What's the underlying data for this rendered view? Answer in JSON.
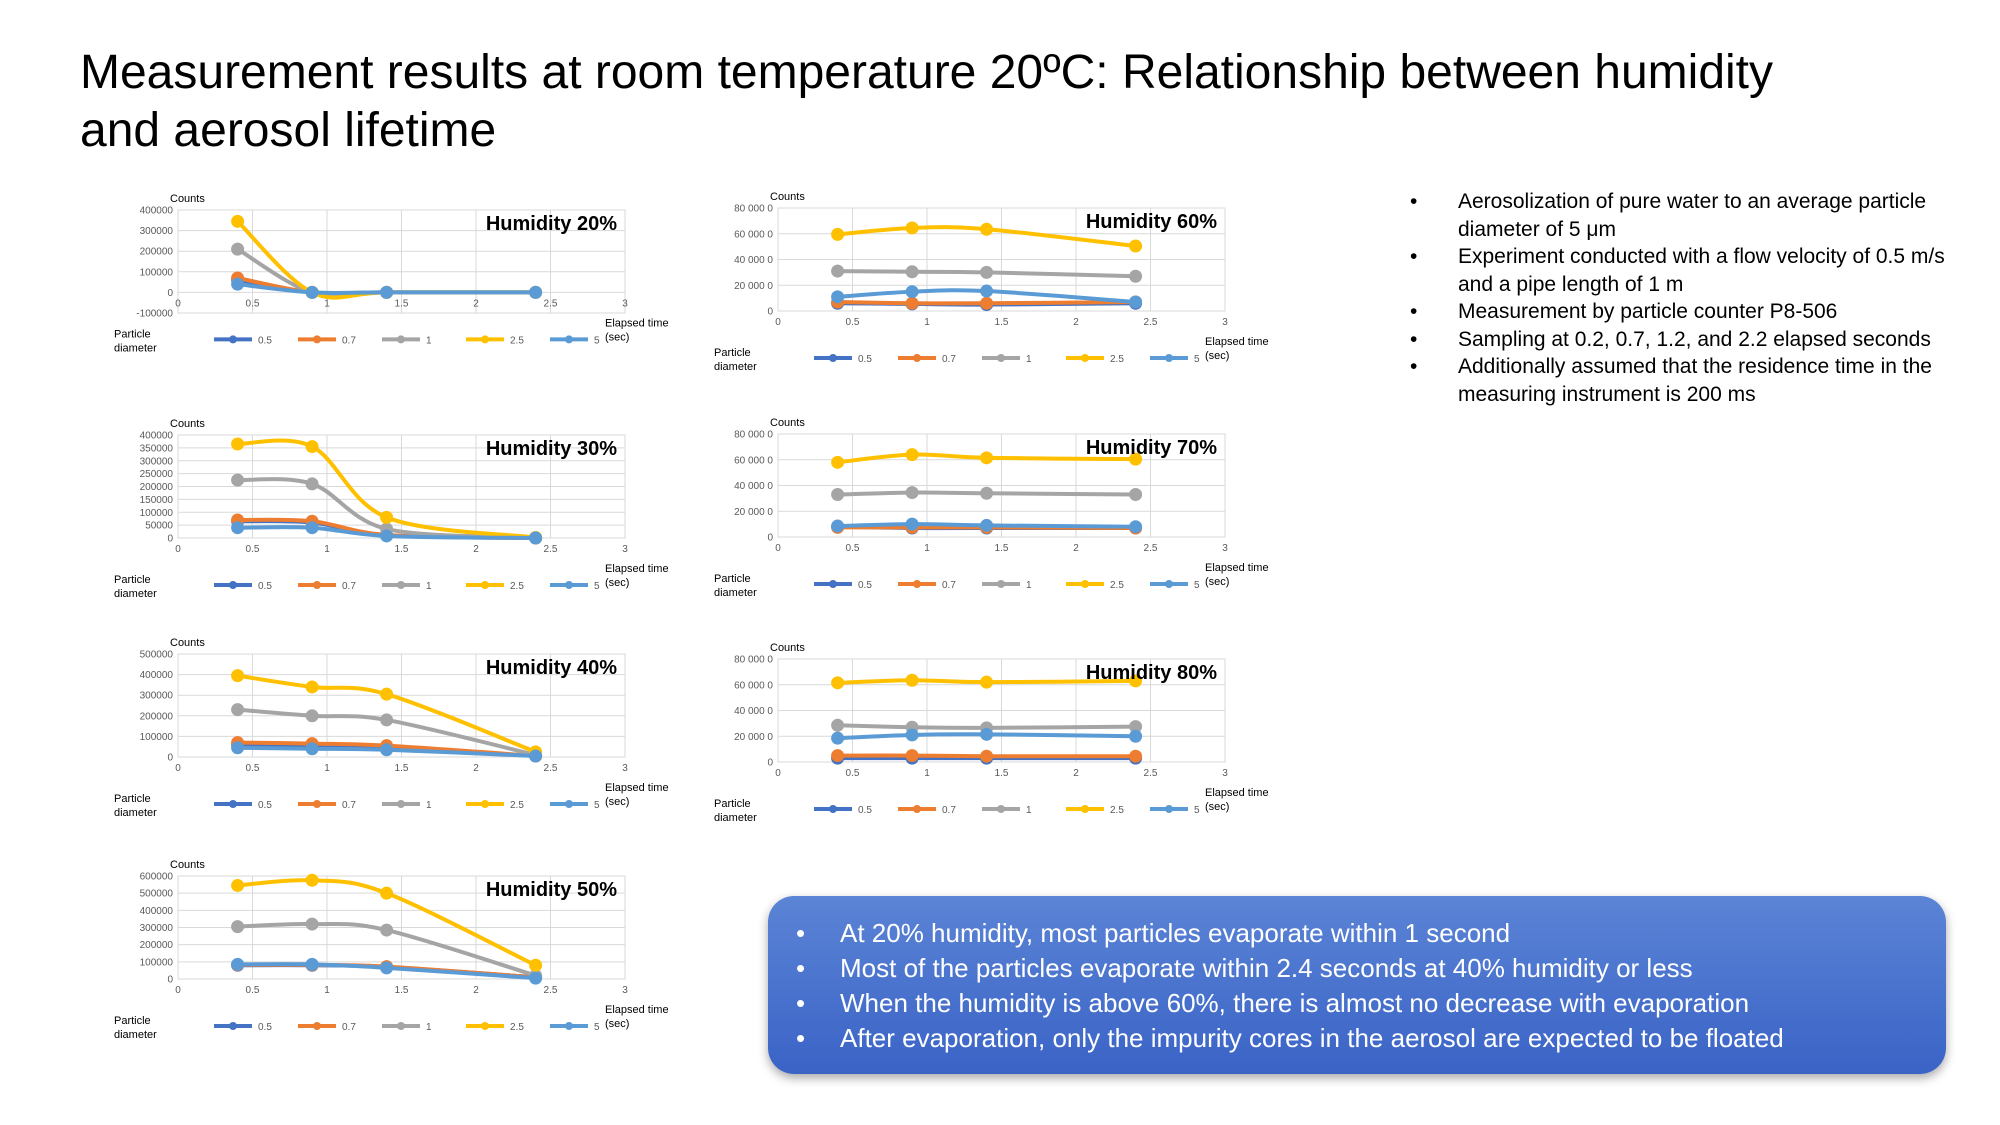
{
  "slide": {
    "title": "Measurement results at room temperature 20ºC: Relationship between humidity and aerosol lifetime"
  },
  "notes": [
    "Aerosolization of pure water to an average particle diameter of 5 μm",
    "Experiment conducted with a flow velocity of 0.5 m/s and a pipe length of 1 m",
    "Measurement by particle counter P8-506",
    "Sampling at 0.2, 0.7, 1.2, and 2.2 elapsed seconds",
    "Additionally assumed that the residence time in the measuring instrument is 200 ms"
  ],
  "summary": [
    "At 20% humidity, most particles evaporate within 1 second",
    "Most of the particles evaporate within 2.4 seconds at 40% humidity or less",
    "When the humidity is above 60%, there is almost no decrease with evaporation",
    "After evaporation, only the impurity cores in the aerosol are expected to be floated"
  ],
  "colors": {
    "d0_5": "#4472c4",
    "d0_7": "#ed7d31",
    "d1": "#a5a5a5",
    "d2_5": "#ffc000",
    "d5": "#5b9bd5",
    "grid": "#d9d9d9",
    "box": "#4472c4"
  },
  "chart_data": [
    {
      "type": "line",
      "title": "Humidity 20%",
      "ylabel": "Counts",
      "xlabel": "Elapsed time (sec)",
      "legend_title": "Particle diameter",
      "xlim": [
        0,
        3
      ],
      "xticks": [
        "0",
        "0.5",
        "1",
        "1.5",
        "2",
        "2.5",
        "3"
      ],
      "ylim": [
        -100000,
        400000
      ],
      "yticks": [
        "-100000",
        "0",
        "100000",
        "200000",
        "300000",
        "400000"
      ],
      "x": [
        0.4,
        0.9,
        1.4,
        2.4
      ],
      "series": [
        {
          "name": "0.5",
          "values": [
            60000,
            0,
            0,
            0
          ]
        },
        {
          "name": "0.7",
          "values": [
            70000,
            0,
            0,
            0
          ]
        },
        {
          "name": "1",
          "values": [
            210000,
            0,
            0,
            0
          ]
        },
        {
          "name": "2.5",
          "values": [
            345000,
            0,
            0,
            0
          ]
        },
        {
          "name": "5",
          "values": [
            40000,
            0,
            0,
            0
          ]
        }
      ]
    },
    {
      "type": "line",
      "title": "Humidity 30%",
      "ylabel": "Counts",
      "xlabel": "Elapsed time (sec)",
      "legend_title": "Particle diameter",
      "xlim": [
        0,
        3
      ],
      "xticks": [
        "0",
        "0.5",
        "1",
        "1.5",
        "2",
        "2.5",
        "3"
      ],
      "ylim": [
        0,
        400000
      ],
      "yticks": [
        "0",
        "50000",
        "100000",
        "150000",
        "200000",
        "250000",
        "300000",
        "350000",
        "400000"
      ],
      "x": [
        0.4,
        0.9,
        1.4,
        2.4
      ],
      "series": [
        {
          "name": "0.5",
          "values": [
            65000,
            60000,
            10000,
            0
          ]
        },
        {
          "name": "0.7",
          "values": [
            70000,
            65000,
            12000,
            0
          ]
        },
        {
          "name": "1",
          "values": [
            225000,
            210000,
            35000,
            2000
          ]
        },
        {
          "name": "2.5",
          "values": [
            365000,
            355000,
            80000,
            2000
          ]
        },
        {
          "name": "5",
          "values": [
            40000,
            40000,
            8000,
            0
          ]
        }
      ]
    },
    {
      "type": "line",
      "title": "Humidity 40%",
      "ylabel": "Counts",
      "xlabel": "Elapsed time (sec)",
      "legend_title": "Particle diameter",
      "xlim": [
        0,
        3
      ],
      "xticks": [
        "0",
        "0.5",
        "1",
        "1.5",
        "2",
        "2.5",
        "3"
      ],
      "ylim": [
        0,
        500000
      ],
      "yticks": [
        "0",
        "100000",
        "200000",
        "300000",
        "400000",
        "500000"
      ],
      "x": [
        0.4,
        0.9,
        1.4,
        2.4
      ],
      "series": [
        {
          "name": "0.5",
          "values": [
            60000,
            50000,
            45000,
            5000
          ]
        },
        {
          "name": "0.7",
          "values": [
            70000,
            65000,
            55000,
            5000
          ]
        },
        {
          "name": "1",
          "values": [
            230000,
            200000,
            180000,
            10000
          ]
        },
        {
          "name": "2.5",
          "values": [
            395000,
            340000,
            305000,
            25000
          ]
        },
        {
          "name": "5",
          "values": [
            45000,
            40000,
            35000,
            5000
          ]
        }
      ]
    },
    {
      "type": "line",
      "title": "Humidity 50%",
      "ylabel": "Counts",
      "xlabel": "Elapsed time (sec)",
      "legend_title": "Particle diameter",
      "xlim": [
        0,
        3
      ],
      "xticks": [
        "0",
        "0.5",
        "1",
        "1.5",
        "2",
        "2.5",
        "3"
      ],
      "ylim": [
        0,
        600000
      ],
      "yticks": [
        "0",
        "100000",
        "200000",
        "300000",
        "400000",
        "500000",
        "600000"
      ],
      "x": [
        0.4,
        0.9,
        1.4,
        2.4
      ],
      "series": [
        {
          "name": "0.5",
          "values": [
            80000,
            80000,
            70000,
            10000
          ]
        },
        {
          "name": "0.7",
          "values": [
            82000,
            82000,
            72000,
            10000
          ]
        },
        {
          "name": "1",
          "values": [
            305000,
            320000,
            285000,
            20000
          ]
        },
        {
          "name": "2.5",
          "values": [
            545000,
            575000,
            500000,
            80000
          ]
        },
        {
          "name": "5",
          "values": [
            85000,
            85000,
            65000,
            5000
          ]
        }
      ]
    },
    {
      "type": "line",
      "title": "Humidity 60%",
      "ylabel": "Counts",
      "xlabel": "Elapsed time (sec)",
      "legend_title": "Particle diameter",
      "xlim": [
        0,
        3
      ],
      "xticks": [
        "0",
        "0.5",
        "1",
        "1.5",
        "2",
        "2.5",
        "3"
      ],
      "ylim": [
        0,
        800000
      ],
      "yticks": [
        "0",
        "20 000 0",
        "40 000 0",
        "60 000 0",
        "80 000 0"
      ],
      "x": [
        0.4,
        0.9,
        1.4,
        2.4
      ],
      "series": [
        {
          "name": "0.5",
          "values": [
            60000,
            55000,
            50000,
            60000
          ]
        },
        {
          "name": "0.7",
          "values": [
            70000,
            60000,
            60000,
            70000
          ]
        },
        {
          "name": "1",
          "values": [
            310000,
            305000,
            300000,
            270000
          ]
        },
        {
          "name": "2.5",
          "values": [
            595000,
            645000,
            635000,
            505000
          ]
        },
        {
          "name": "5",
          "values": [
            110000,
            150000,
            155000,
            70000
          ]
        }
      ]
    },
    {
      "type": "line",
      "title": "Humidity 70%",
      "ylabel": "Counts",
      "xlabel": "Elapsed time (sec)",
      "legend_title": "Particle diameter",
      "xlim": [
        0,
        3
      ],
      "xticks": [
        "0",
        "0.5",
        "1",
        "1.5",
        "2",
        "2.5",
        "3"
      ],
      "ylim": [
        0,
        800000
      ],
      "yticks": [
        "0",
        "20 000 0",
        "40 000 0",
        "60 000 0",
        "80 000 0"
      ],
      "x": [
        0.4,
        0.9,
        1.4,
        2.4
      ],
      "series": [
        {
          "name": "0.5",
          "values": [
            80000,
            70000,
            70000,
            70000
          ]
        },
        {
          "name": "0.7",
          "values": [
            75000,
            75000,
            75000,
            70000
          ]
        },
        {
          "name": "1",
          "values": [
            330000,
            345000,
            340000,
            330000
          ]
        },
        {
          "name": "2.5",
          "values": [
            580000,
            640000,
            615000,
            605000
          ]
        },
        {
          "name": "5",
          "values": [
            85000,
            100000,
            90000,
            80000
          ]
        }
      ]
    },
    {
      "type": "line",
      "title": "Humidity 80%",
      "ylabel": "Counts",
      "xlabel": "Elapsed time (sec)",
      "legend_title": "Particle diameter",
      "xlim": [
        0,
        3
      ],
      "xticks": [
        "0",
        "0.5",
        "1",
        "1.5",
        "2",
        "2.5",
        "3"
      ],
      "ylim": [
        0,
        800000
      ],
      "yticks": [
        "0",
        "20 000 0",
        "40 000 0",
        "60 000 0",
        "80 000 0"
      ],
      "x": [
        0.4,
        0.9,
        1.4,
        2.4
      ],
      "series": [
        {
          "name": "0.5",
          "values": [
            30000,
            30000,
            30000,
            30000
          ]
        },
        {
          "name": "0.7",
          "values": [
            50000,
            50000,
            45000,
            45000
          ]
        },
        {
          "name": "1",
          "values": [
            285000,
            270000,
            265000,
            275000
          ]
        },
        {
          "name": "2.5",
          "values": [
            615000,
            635000,
            620000,
            630000
          ]
        },
        {
          "name": "5",
          "values": [
            185000,
            210000,
            215000,
            200000
          ]
        }
      ]
    }
  ]
}
